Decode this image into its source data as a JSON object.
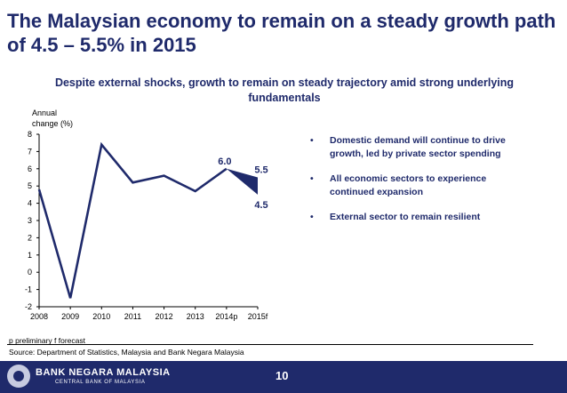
{
  "slide": {
    "title": "The Malaysian economy to remain on a steady growth path of 4.5 – 5.5% in 2015",
    "subtitle": "Despite external shocks, growth to remain on steady trajectory amid strong underlying fundamentals"
  },
  "chart_data": {
    "type": "line",
    "ylabel": "Annual change (%)",
    "ylim": [
      -2,
      8
    ],
    "yticks": [
      "-2",
      "-1",
      "0",
      "1",
      "2",
      "3",
      "4",
      "5",
      "6",
      "7",
      "8"
    ],
    "categories": [
      "2008",
      "2009",
      "2010",
      "2011",
      "2012",
      "2013",
      "2014p",
      "2015f"
    ],
    "series": [
      {
        "values": [
          4.8,
          -1.5,
          7.4,
          5.2,
          5.6,
          4.7,
          6.0,
          null
        ]
      }
    ],
    "forecast_range": {
      "category": "2015f",
      "from": 6.0,
      "upper": 5.5,
      "lower": 4.5
    },
    "annotations": [
      "6.0",
      "5.5",
      "4.5"
    ],
    "line_color": "#1f2a6b",
    "grid": false
  },
  "bullets": [
    "Domestic demand will continue to drive growth, led by private sector spending",
    "All economic sectors to experience continued expansion",
    "External sector to remain resilient"
  ],
  "bullet_symbol": "•",
  "footnote": "p preliminary   f forecast",
  "source": "Source: Department of Statistics, Malaysia and Bank Negara Malaysia",
  "footer": {
    "bank_name": "BANK NEGARA MALAYSIA",
    "bank_subtitle": "CENTRAL BANK OF MALAYSIA",
    "page_number": "10",
    "logo_icon": "bank-crest-icon"
  }
}
